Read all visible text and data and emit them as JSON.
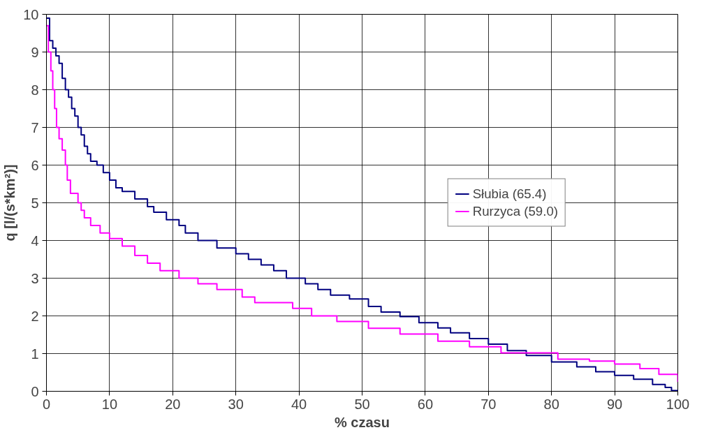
{
  "chart_data": {
    "type": "step",
    "xlabel": "% czasu",
    "ylabel": "q [l/(s*km²)]",
    "xlim": [
      0,
      100
    ],
    "ylim": [
      0,
      10
    ],
    "xticks": [
      0,
      10,
      20,
      30,
      40,
      50,
      60,
      70,
      80,
      90,
      100
    ],
    "yticks": [
      0,
      1,
      2,
      3,
      4,
      5,
      6,
      7,
      8,
      9,
      10
    ],
    "grid": true,
    "legend": "right",
    "marker": "none",
    "line_style": "solid",
    "series": [
      {
        "name": "Słubia (65.4)",
        "color": "#000080",
        "x": [
          0,
          0.5,
          1,
          1.5,
          2,
          2.5,
          3,
          3.5,
          4,
          4.5,
          5,
          5.5,
          6,
          6.5,
          7,
          8,
          9,
          10,
          11,
          12,
          14,
          16,
          17,
          19,
          21,
          22,
          24,
          27,
          30,
          32,
          34,
          36,
          38,
          41,
          43,
          45,
          48,
          51,
          53,
          56,
          59,
          62,
          64,
          67,
          70,
          73,
          76,
          80,
          84,
          87,
          90,
          93,
          96,
          98,
          99,
          100
        ],
        "values": [
          9.9,
          9.3,
          9.1,
          8.9,
          8.7,
          8.3,
          8.0,
          7.8,
          7.5,
          7.3,
          7.0,
          6.8,
          6.5,
          6.3,
          6.1,
          6.0,
          5.8,
          5.6,
          5.4,
          5.3,
          5.1,
          4.9,
          4.75,
          4.55,
          4.4,
          4.2,
          4.0,
          3.8,
          3.65,
          3.5,
          3.35,
          3.2,
          3.0,
          2.85,
          2.7,
          2.55,
          2.45,
          2.25,
          2.1,
          1.98,
          1.82,
          1.68,
          1.55,
          1.4,
          1.25,
          1.08,
          0.95,
          0.78,
          0.65,
          0.52,
          0.42,
          0.32,
          0.18,
          0.1,
          0.02,
          0.0
        ]
      },
      {
        "name": "Rurzyca (59.0)",
        "color": "#ff00ff",
        "x": [
          0,
          0.3,
          0.7,
          1,
          1.3,
          1.6,
          2,
          2.5,
          3,
          3.3,
          3.8,
          5,
          5.5,
          6,
          7,
          8.5,
          10,
          12,
          14,
          16,
          18,
          21,
          24,
          27,
          31,
          33,
          39,
          42,
          46,
          51,
          56,
          62,
          67,
          72,
          81,
          86,
          90,
          94,
          97,
          100
        ],
        "values": [
          9.7,
          9.0,
          8.5,
          8.0,
          7.5,
          7.0,
          6.7,
          6.4,
          6.0,
          5.6,
          5.25,
          5.0,
          4.8,
          4.6,
          4.4,
          4.2,
          4.05,
          3.85,
          3.6,
          3.4,
          3.2,
          3.0,
          2.85,
          2.7,
          2.5,
          2.35,
          2.2,
          2.0,
          1.85,
          1.67,
          1.52,
          1.33,
          1.18,
          1.02,
          0.85,
          0.8,
          0.72,
          0.6,
          0.45,
          0.25
        ]
      }
    ]
  }
}
